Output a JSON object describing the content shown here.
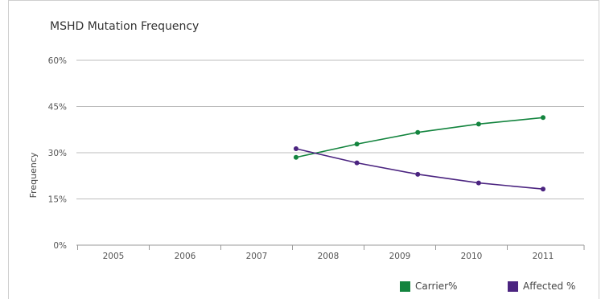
{
  "chart_data": {
    "type": "line",
    "title": "MSHD Mutation Frequency",
    "ylabel": "Frequency",
    "xlabel": "",
    "categories": [
      "2005",
      "2006",
      "2007",
      "2008",
      "2009",
      "2010",
      "2011"
    ],
    "yticks": [
      "0%",
      "15%",
      "30%",
      "45%",
      "60%"
    ],
    "ylim": [
      0,
      60
    ],
    "grid": true,
    "legend_position": "bottom-right",
    "series": [
      {
        "name": "Carrier%",
        "color": "#13843e",
        "x": [
          2007.55,
          2008.4,
          2009.25,
          2010.1,
          2011.0
        ],
        "values": [
          28.5,
          32.8,
          36.6,
          39.3,
          41.4
        ]
      },
      {
        "name": "Affected %",
        "color": "#4b2480",
        "x": [
          2007.55,
          2008.4,
          2009.25,
          2010.1,
          2011.0
        ],
        "values": [
          31.3,
          26.7,
          23.0,
          20.2,
          18.2
        ]
      }
    ]
  }
}
